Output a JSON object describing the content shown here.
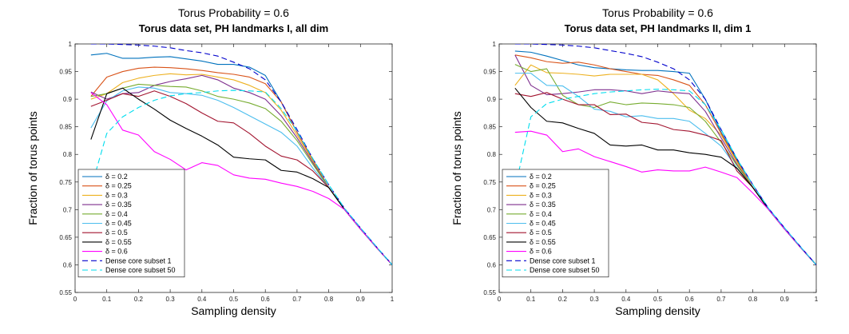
{
  "chart_data": [
    {
      "type": "line",
      "title": "Torus Probability = 0.6",
      "subtitle": "Torus data set, PH landmarks I, all dim",
      "xlabel": "Sampling density",
      "ylabel": "Fraction of torus points",
      "xlim": [
        0,
        1
      ],
      "ylim": [
        0.55,
        1
      ],
      "xticks": [
        "0",
        "0.1",
        "0.2",
        "0.3",
        "0.4",
        "0.5",
        "0.6",
        "0.7",
        "0.8",
        "0.9",
        "1"
      ],
      "yticks": [
        "0.55",
        "0.6",
        "0.65",
        "0.7",
        "0.75",
        "0.8",
        "0.85",
        "0.9",
        "0.95",
        "1"
      ],
      "grid": false,
      "legend_position": "bottom-left",
      "x": [
        0.05,
        0.1,
        0.15,
        0.2,
        0.25,
        0.3,
        0.35,
        0.4,
        0.45,
        0.5,
        0.55,
        0.6,
        0.65,
        0.7,
        0.75,
        0.8,
        0.85,
        0.9,
        0.95,
        1.0
      ],
      "series": [
        {
          "name": "δ = 0.2",
          "color": "#0072BD",
          "dash": "solid",
          "values": [
            0.98,
            0.983,
            0.974,
            0.974,
            0.976,
            0.977,
            0.973,
            0.969,
            0.963,
            0.963,
            0.958,
            0.943,
            0.895,
            0.84,
            0.79,
            0.74,
            0.7,
            0.665,
            0.632,
            0.6
          ]
        },
        {
          "name": "δ = 0.25",
          "color": "#D95319",
          "dash": "solid",
          "values": [
            0.905,
            0.94,
            0.95,
            0.956,
            0.958,
            0.957,
            0.955,
            0.952,
            0.948,
            0.945,
            0.94,
            0.928,
            0.895,
            0.84,
            0.79,
            0.74,
            0.7,
            0.665,
            0.632,
            0.6
          ]
        },
        {
          "name": "δ = 0.3",
          "color": "#EDB120",
          "dash": "solid",
          "values": [
            0.9,
            0.91,
            0.93,
            0.938,
            0.943,
            0.946,
            0.944,
            0.945,
            0.94,
            0.935,
            0.925,
            0.912,
            0.88,
            0.835,
            0.788,
            0.74,
            0.7,
            0.665,
            0.632,
            0.6
          ]
        },
        {
          "name": "δ = 0.35",
          "color": "#7E2F8E",
          "dash": "solid",
          "values": [
            0.913,
            0.9,
            0.91,
            0.912,
            0.925,
            0.932,
            0.937,
            0.943,
            0.935,
            0.92,
            0.912,
            0.9,
            0.87,
            0.83,
            0.785,
            0.74,
            0.7,
            0.665,
            0.632,
            0.6
          ]
        },
        {
          "name": "δ = 0.4",
          "color": "#77AC30",
          "dash": "solid",
          "values": [
            0.905,
            0.91,
            0.92,
            0.927,
            0.925,
            0.923,
            0.922,
            0.915,
            0.905,
            0.9,
            0.893,
            0.883,
            0.86,
            0.825,
            0.782,
            0.74,
            0.7,
            0.665,
            0.632,
            0.6
          ]
        },
        {
          "name": "δ = 0.45",
          "color": "#4DBEEE",
          "dash": "solid",
          "values": [
            0.848,
            0.897,
            0.915,
            0.922,
            0.92,
            0.912,
            0.91,
            0.907,
            0.898,
            0.885,
            0.87,
            0.855,
            0.84,
            0.815,
            0.775,
            0.74,
            0.7,
            0.665,
            0.632,
            0.6
          ]
        },
        {
          "name": "δ = 0.5",
          "color": "#A2142F",
          "dash": "solid",
          "values": [
            0.887,
            0.898,
            0.91,
            0.905,
            0.915,
            0.905,
            0.892,
            0.875,
            0.86,
            0.857,
            0.838,
            0.815,
            0.797,
            0.79,
            0.77,
            0.74,
            0.7,
            0.665,
            0.632,
            0.6
          ]
        },
        {
          "name": "δ = 0.55",
          "color": "#000000",
          "dash": "solid",
          "values": [
            0.827,
            0.91,
            0.92,
            0.9,
            0.882,
            0.862,
            0.847,
            0.833,
            0.817,
            0.795,
            0.792,
            0.79,
            0.771,
            0.768,
            0.756,
            0.74,
            0.7,
            0.665,
            0.632,
            0.6
          ]
        },
        {
          "name": "δ = 0.6",
          "color": "#FF00FF",
          "dash": "solid",
          "values": [
            0.912,
            0.89,
            0.844,
            0.835,
            0.805,
            0.791,
            0.772,
            0.785,
            0.78,
            0.763,
            0.757,
            0.755,
            0.748,
            0.742,
            0.733,
            0.72,
            0.7,
            0.665,
            0.632,
            0.6
          ]
        },
        {
          "name": "Dense core subset 1",
          "color": "#0000CC",
          "dash": "dashed",
          "values": [
            1.0,
            1.0,
            0.999,
            0.998,
            0.996,
            0.993,
            0.988,
            0.984,
            0.978,
            0.967,
            0.955,
            0.935,
            0.895,
            0.845,
            0.792,
            0.745,
            0.702,
            0.667,
            0.633,
            0.6
          ]
        },
        {
          "name": "Dense core subset 50",
          "color": "#00DDEE",
          "dash": "dashed",
          "values": [
            0.738,
            0.838,
            0.868,
            0.885,
            0.898,
            0.906,
            0.91,
            0.912,
            0.915,
            0.916,
            0.915,
            0.913,
            0.883,
            0.842,
            0.792,
            0.745,
            0.702,
            0.667,
            0.633,
            0.6
          ]
        }
      ]
    },
    {
      "type": "line",
      "title": "Torus Probability = 0.6",
      "subtitle": "Torus data set, PH landmarks II, dim 1",
      "xlabel": "Sampling density",
      "ylabel": "Fraction of torus points",
      "xlim": [
        0,
        1
      ],
      "ylim": [
        0.55,
        1
      ],
      "xticks": [
        "0",
        "0.1",
        "0.2",
        "0.3",
        "0.4",
        "0.5",
        "0.6",
        "0.7",
        "0.8",
        "0.9",
        "1"
      ],
      "yticks": [
        "0.55",
        "0.6",
        "0.65",
        "0.7",
        "0.75",
        "0.8",
        "0.85",
        "0.9",
        "0.95",
        "1"
      ],
      "grid": false,
      "legend_position": "bottom-left",
      "x": [
        0.05,
        0.1,
        0.15,
        0.2,
        0.25,
        0.3,
        0.35,
        0.4,
        0.45,
        0.5,
        0.55,
        0.6,
        0.65,
        0.7,
        0.75,
        0.8,
        0.85,
        0.9,
        0.95,
        1.0
      ],
      "series": [
        {
          "name": "δ = 0.2",
          "color": "#0072BD",
          "dash": "solid",
          "values": [
            0.987,
            0.985,
            0.978,
            0.97,
            0.962,
            0.957,
            0.955,
            0.953,
            0.952,
            0.952,
            0.95,
            0.947,
            0.9,
            0.84,
            0.79,
            0.74,
            0.7,
            0.665,
            0.632,
            0.6
          ]
        },
        {
          "name": "δ = 0.25",
          "color": "#D95319",
          "dash": "solid",
          "values": [
            0.98,
            0.975,
            0.968,
            0.965,
            0.967,
            0.962,
            0.955,
            0.95,
            0.945,
            0.943,
            0.935,
            0.925,
            0.89,
            0.838,
            0.788,
            0.74,
            0.7,
            0.665,
            0.632,
            0.6
          ]
        },
        {
          "name": "δ = 0.3",
          "color": "#EDB120",
          "dash": "solid",
          "values": [
            0.925,
            0.962,
            0.948,
            0.947,
            0.945,
            0.942,
            0.945,
            0.945,
            0.945,
            0.935,
            0.91,
            0.88,
            0.865,
            0.835,
            0.786,
            0.74,
            0.7,
            0.665,
            0.632,
            0.6
          ]
        },
        {
          "name": "δ = 0.35",
          "color": "#7E2F8E",
          "dash": "solid",
          "values": [
            0.98,
            0.925,
            0.908,
            0.91,
            0.913,
            0.917,
            0.917,
            0.915,
            0.91,
            0.915,
            0.912,
            0.91,
            0.878,
            0.83,
            0.782,
            0.74,
            0.7,
            0.665,
            0.632,
            0.6
          ]
        },
        {
          "name": "δ = 0.4",
          "color": "#77AC30",
          "dash": "solid",
          "values": [
            0.963,
            0.95,
            0.955,
            0.907,
            0.89,
            0.885,
            0.895,
            0.89,
            0.893,
            0.892,
            0.89,
            0.885,
            0.86,
            0.822,
            0.78,
            0.74,
            0.7,
            0.665,
            0.632,
            0.6
          ]
        },
        {
          "name": "δ = 0.45",
          "color": "#4DBEEE",
          "dash": "solid",
          "values": [
            0.947,
            0.947,
            0.925,
            0.924,
            0.905,
            0.882,
            0.878,
            0.868,
            0.87,
            0.865,
            0.865,
            0.86,
            0.838,
            0.815,
            0.775,
            0.74,
            0.7,
            0.665,
            0.632,
            0.6
          ]
        },
        {
          "name": "δ = 0.5",
          "color": "#A2142F",
          "dash": "solid",
          "values": [
            0.91,
            0.905,
            0.912,
            0.9,
            0.89,
            0.89,
            0.872,
            0.873,
            0.858,
            0.855,
            0.845,
            0.842,
            0.835,
            0.825,
            0.77,
            0.74,
            0.7,
            0.665,
            0.632,
            0.6
          ]
        },
        {
          "name": "δ = 0.55",
          "color": "#000000",
          "dash": "solid",
          "values": [
            0.92,
            0.885,
            0.86,
            0.857,
            0.847,
            0.838,
            0.817,
            0.815,
            0.817,
            0.808,
            0.808,
            0.803,
            0.8,
            0.795,
            0.775,
            0.74,
            0.7,
            0.665,
            0.632,
            0.6
          ]
        },
        {
          "name": "δ = 0.6",
          "color": "#FF00FF",
          "dash": "solid",
          "values": [
            0.84,
            0.842,
            0.835,
            0.805,
            0.81,
            0.796,
            0.787,
            0.778,
            0.768,
            0.772,
            0.77,
            0.77,
            0.777,
            0.768,
            0.758,
            0.73,
            0.7,
            0.665,
            0.632,
            0.6
          ]
        },
        {
          "name": "Dense core subset 1",
          "color": "#0000CC",
          "dash": "dashed",
          "values": [
            1.0,
            1.0,
            0.999,
            0.998,
            0.996,
            0.993,
            0.988,
            0.983,
            0.977,
            0.967,
            0.955,
            0.935,
            0.9,
            0.845,
            0.792,
            0.745,
            0.702,
            0.667,
            0.633,
            0.6
          ]
        },
        {
          "name": "Dense core subset 50",
          "color": "#00DDEE",
          "dash": "dashed",
          "values": [
            0.738,
            0.868,
            0.892,
            0.9,
            0.905,
            0.91,
            0.913,
            0.915,
            0.917,
            0.918,
            0.917,
            0.915,
            0.89,
            0.845,
            0.792,
            0.745,
            0.702,
            0.667,
            0.633,
            0.6
          ]
        }
      ]
    }
  ]
}
